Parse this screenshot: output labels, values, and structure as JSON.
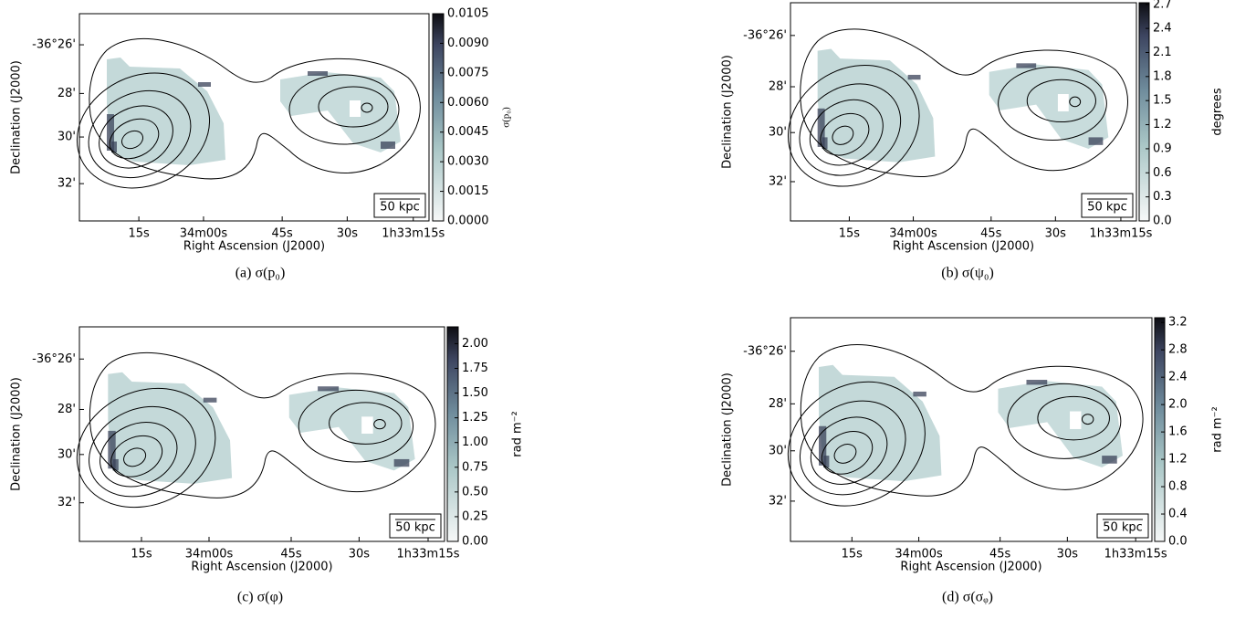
{
  "panels": [
    {
      "caption": "(a) σ(p₀)",
      "xlabel": "Right Ascension (J2000)",
      "ylabel": "Declination (J2000)",
      "xticks": [
        "15s",
        "34m00s",
        "45s",
        "30s",
        "1h33m15s"
      ],
      "yticks": [
        "-36°26'",
        "28'",
        "30'",
        "32'"
      ],
      "scalebar": "50 kpc",
      "colorbar": {
        "label": "σ(p₀)",
        "lim": [
          0,
          0.0105
        ],
        "ticks": [
          {
            "value": 0,
            "label": "0.0000"
          },
          {
            "value": 0.0015,
            "label": "0.0015"
          },
          {
            "value": 0.003,
            "label": "0.0030"
          },
          {
            "value": 0.0045,
            "label": "0.0045"
          },
          {
            "value": 0.006,
            "label": "0.0060"
          },
          {
            "value": 0.0075,
            "label": "0.0075"
          },
          {
            "value": 0.009,
            "label": "0.0090"
          },
          {
            "value": 0.0105,
            "label": "0.0105"
          }
        ]
      }
    },
    {
      "caption": "(b) σ(ψ₀)",
      "xlabel": "Right Ascension (J2000)",
      "ylabel": "Declination (J2000)",
      "xticks": [
        "15s",
        "34m00s",
        "45s",
        "30s",
        "1h33m15s"
      ],
      "yticks": [
        "-36°26'",
        "28'",
        "30'",
        "32'"
      ],
      "scalebar": "50 kpc",
      "colorbar": {
        "label": "degrees",
        "lim": [
          0,
          2.72
        ],
        "ticks": [
          {
            "value": 0,
            "label": "0.0"
          },
          0.3,
          0.6,
          0.9,
          1.2,
          1.5,
          1.8,
          2.1,
          2.4,
          2.7
        ]
      }
    },
    {
      "caption": "(c) σ(φ)",
      "xlabel": "Right Ascension (J2000)",
      "ylabel": "Declination (J2000)",
      "xticks": [
        "15s",
        "34m00s",
        "45s",
        "30s",
        "1h33m15s"
      ],
      "yticks": [
        "-36°26'",
        "28'",
        "30'",
        "32'"
      ],
      "scalebar": "50 kpc",
      "colorbar": {
        "label": "rad m⁻²",
        "lim": [
          0,
          2.17
        ],
        "ticks": [
          {
            "value": 0,
            "label": "0.00"
          },
          0.25,
          {
            "value": 0.5,
            "label": "0.50"
          },
          0.75,
          {
            "value": 1,
            "label": "1.00"
          },
          1.25,
          {
            "value": 1.5,
            "label": "1.50"
          },
          1.75,
          {
            "value": 2,
            "label": "2.00"
          }
        ]
      }
    },
    {
      "caption": "(d) σ(σᵩ)",
      "xlabel": "Right Ascension (J2000)",
      "ylabel": "Declination (J2000)",
      "xticks": [
        "15s",
        "34m00s",
        "45s",
        "30s",
        "1h33m15s"
      ],
      "yticks": [
        "-36°26'",
        "28'",
        "30'",
        "32'"
      ],
      "scalebar": "50 kpc",
      "colorbar": {
        "label": "rad m⁻²",
        "lim": [
          0,
          3.27
        ],
        "ticks": [
          {
            "value": 0,
            "label": "0.0"
          },
          0.4,
          0.8,
          1.2,
          1.6,
          {
            "value": 2,
            "label": "2.0"
          },
          2.4,
          2.8,
          3.2
        ]
      }
    }
  ]
}
